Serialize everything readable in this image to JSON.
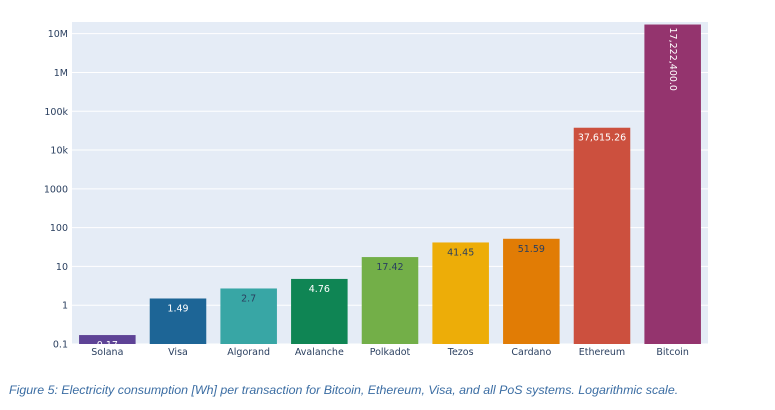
{
  "caption": "Figure 5: Electricity consumption [Wh] per transaction for Bitcoin, Ethereum, Visa, and all PoS systems. Logarithmic scale.",
  "chart_data": {
    "type": "bar",
    "title": "",
    "xlabel": "",
    "ylabel": "",
    "yscale": "log",
    "ylim": [
      0.1,
      20000000
    ],
    "grid": true,
    "legend": "none",
    "background_color": "#e5ecf6",
    "y_ticks": [
      {
        "value": 0.1,
        "label": "0.1"
      },
      {
        "value": 1,
        "label": "1"
      },
      {
        "value": 10,
        "label": "10"
      },
      {
        "value": 100,
        "label": "100"
      },
      {
        "value": 1000,
        "label": "1000"
      },
      {
        "value": 10000,
        "label": "10k"
      },
      {
        "value": 100000,
        "label": "100k"
      },
      {
        "value": 1000000,
        "label": "1M"
      },
      {
        "value": 10000000,
        "label": "10M"
      }
    ],
    "bars": [
      {
        "category": "Solana",
        "value": 0.17,
        "label": "0.17",
        "color": "#5e4396",
        "label_color": "#ffffff"
      },
      {
        "category": "Visa",
        "value": 1.49,
        "label": "1.49",
        "color": "#1d6596",
        "label_color": "#ffffff"
      },
      {
        "category": "Algorand",
        "value": 2.7,
        "label": "2.7",
        "color": "#38a6a5",
        "label_color": "#2a3f5f"
      },
      {
        "category": "Avalanche",
        "value": 4.76,
        "label": "4.76",
        "color": "#0f8554",
        "label_color": "#ffffff"
      },
      {
        "category": "Polkadot",
        "value": 17.42,
        "label": "17.42",
        "color": "#73af48",
        "label_color": "#2a3f5f"
      },
      {
        "category": "Tezos",
        "value": 41.45,
        "label": "41.45",
        "color": "#edad08",
        "label_color": "#2a3f5f"
      },
      {
        "category": "Cardano",
        "value": 51.59,
        "label": "51.59",
        "color": "#e17c05",
        "label_color": "#2a3f5f"
      },
      {
        "category": "Ethereum",
        "value": 37615.26,
        "label": "37,615.26",
        "color": "#cc503e",
        "label_color": "#ffffff"
      },
      {
        "category": "Bitcoin",
        "value": 17222400,
        "label": "17,222,400.0",
        "color": "#94346e",
        "label_color": "#ffffff",
        "label_rotated": true
      }
    ]
  }
}
